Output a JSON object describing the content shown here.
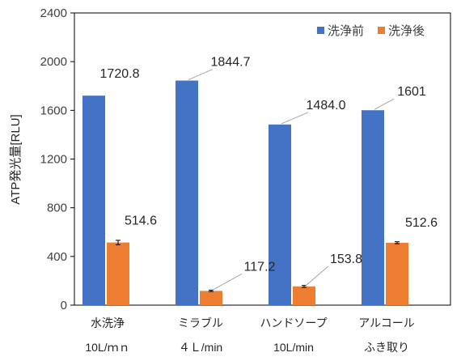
{
  "chart_data": {
    "type": "bar",
    "categories": [
      {
        "line1": "水洗浄",
        "line2": "10L/ｍｎ"
      },
      {
        "line1": "ミラブル",
        "line2": "４Ｌ/min"
      },
      {
        "line1": "ハンドソープ",
        "line2": "10L/min"
      },
      {
        "line1": "アルコール",
        "line2": "ふき取り"
      }
    ],
    "series": [
      {
        "name": "洗浄前",
        "color": "#4472C4",
        "values": [
          1720.8,
          1844.7,
          1484.0,
          1601
        ],
        "labels": [
          "1720.8",
          "1844.7",
          "1484.0",
          "1601"
        ],
        "errors": [
          0,
          0,
          0,
          0
        ]
      },
      {
        "name": "洗浄後",
        "color": "#ED7D31",
        "values": [
          514.6,
          117.2,
          153.8,
          512.6
        ],
        "labels": [
          "514.6",
          "117.2",
          "153.8",
          "512.6"
        ],
        "errors": [
          18,
          6,
          8,
          8
        ]
      }
    ],
    "ylabel": "ATP発光量[RLU]",
    "ylim": [
      0,
      2400
    ],
    "yticks": [
      0,
      400,
      800,
      1200,
      1600,
      2000,
      2400
    ],
    "grid": false,
    "legend_position": "top-right"
  }
}
